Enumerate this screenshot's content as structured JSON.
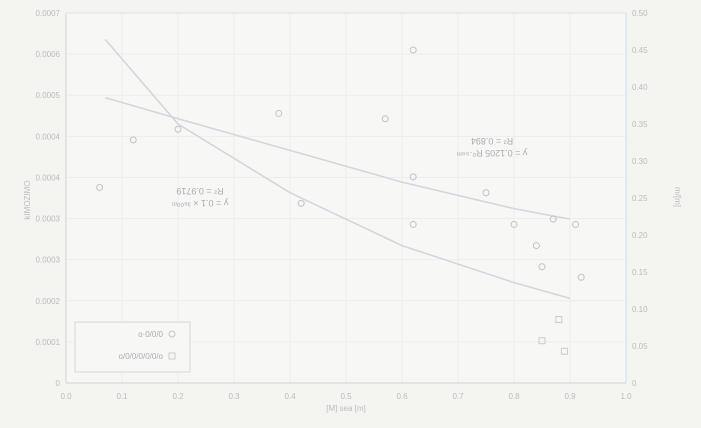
{
  "chart_data": {
    "type": "scatter",
    "xlabel": "[M] sea [m]",
    "ylabel_left": "kIMOZIMO",
    "ylabel_right": "m/[m]",
    "xlim": [
      0.0,
      1.0
    ],
    "ylim_left": [
      0,
      0.0007
    ],
    "ylim_right": [
      0,
      0.5
    ],
    "x_ticks": [
      "0.0",
      "0.1",
      "0.2",
      "0.3",
      "0.4",
      "0.5",
      "0.6",
      "0.7",
      "0.8",
      "0.9",
      "1.0"
    ],
    "y_ticks_left": [
      "0",
      "0.0001",
      "0.0002",
      "0.0003",
      "0.0003",
      "0.0004",
      "0.0004",
      "0.0005",
      "0.0006",
      "0.0007"
    ],
    "y_ticks_right": [
      "0",
      "0.05",
      "0.10",
      "0.15",
      "0.20",
      "0.25",
      "0.30",
      "0.35",
      "0.40",
      "0.45",
      "0.50"
    ],
    "grid": true,
    "legend_position": "bottom-left",
    "series": [
      {
        "name": "o·0/0/0",
        "marker": "circle",
        "axis": "left",
        "color": "#bfc3c7",
        "points": [
          [
            0.06,
            0.00037
          ],
          [
            0.12,
            0.00046
          ],
          [
            0.2,
            0.00048
          ],
          [
            0.42,
            0.00034
          ],
          [
            0.57,
            0.0005
          ],
          [
            0.62,
            0.00039
          ],
          [
            0.62,
            0.0003
          ],
          [
            0.75,
            0.00036
          ],
          [
            0.8,
            0.0003
          ],
          [
            0.84,
            0.00026
          ],
          [
            0.87,
            0.00031
          ],
          [
            0.92,
            0.0002
          ],
          [
            0.38,
            0.00051
          ],
          [
            0.62,
            0.00063
          ],
          [
            0.91,
            0.0003
          ],
          [
            0.85,
            0.00022
          ]
        ]
      },
      {
        "name": "o/0/0/0/0/0/o",
        "marker": "square",
        "axis": "left",
        "color": "#c8cbce",
        "points": [
          [
            0.85,
            8e-05
          ],
          [
            0.89,
            6e-05
          ],
          [
            0.88,
            0.00012
          ]
        ]
      }
    ],
    "trendlines": [
      {
        "axis": "left",
        "color": "#d3d6da",
        "points": [
          [
            0.07,
            0.00054
          ],
          [
            0.2,
            0.0005
          ],
          [
            0.4,
            0.00044
          ],
          [
            0.6,
            0.00038
          ],
          [
            0.8,
            0.00033
          ],
          [
            0.9,
            0.00031
          ]
        ],
        "equation": "y = 0.1205 R⁰·⁹⁹ᵐ",
        "r2": "R² = 0.894"
      },
      {
        "axis": "left",
        "color": "#d3d6da",
        "points": [
          [
            0.07,
            0.00065
          ],
          [
            0.2,
            0.00049
          ],
          [
            0.4,
            0.00036
          ],
          [
            0.6,
            0.00026
          ],
          [
            0.8,
            0.00019
          ],
          [
            0.9,
            0.00016
          ]
        ],
        "equation": "y = 0.1 × ³⁶⁰⁰ᵐ",
        "r2": "R² = 0.9719"
      }
    ]
  }
}
